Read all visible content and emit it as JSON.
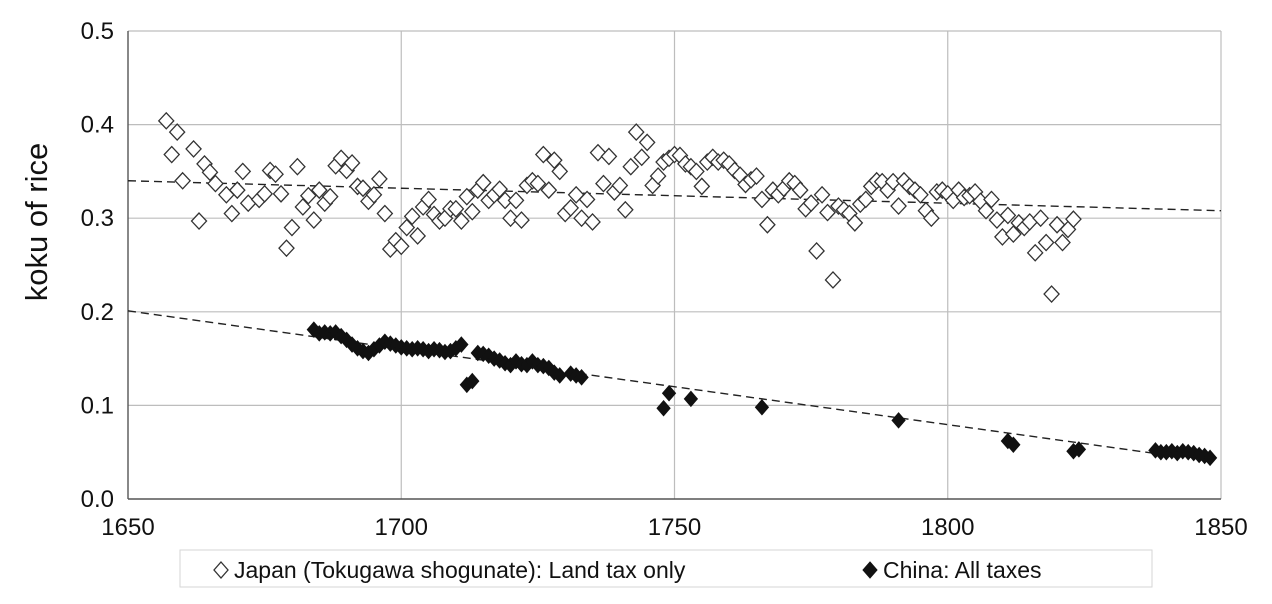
{
  "chart_data": {
    "type": "scatter",
    "title": "",
    "xlabel": "",
    "ylabel": "koku of rice",
    "xlim": [
      1650,
      1850
    ],
    "ylim": [
      0,
      0.5
    ],
    "x_ticks": [
      "1650",
      "1700",
      "1750",
      "1800",
      "1850"
    ],
    "y_ticks": [
      "0.0",
      "0.1",
      "0.2",
      "0.3",
      "0.4",
      "0.5"
    ],
    "grid": true,
    "legend_position": "bottom",
    "series": [
      {
        "name": "Japan (Tokugawa shogunate): Land tax only",
        "marker": "open-diamond",
        "color": "#ffffff",
        "stroke": "#333333",
        "trend": {
          "x": [
            1650,
            1850
          ],
          "y": [
            0.34,
            0.308
          ]
        },
        "points": [
          [
            1657,
            0.404
          ],
          [
            1658,
            0.368
          ],
          [
            1659,
            0.392
          ],
          [
            1660,
            0.34
          ],
          [
            1662,
            0.374
          ],
          [
            1663,
            0.297
          ],
          [
            1664,
            0.358
          ],
          [
            1665,
            0.349
          ],
          [
            1666,
            0.337
          ],
          [
            1668,
            0.325
          ],
          [
            1669,
            0.305
          ],
          [
            1670,
            0.33
          ],
          [
            1671,
            0.35
          ],
          [
            1672,
            0.316
          ],
          [
            1674,
            0.32
          ],
          [
            1675,
            0.326
          ],
          [
            1676,
            0.351
          ],
          [
            1677,
            0.347
          ],
          [
            1678,
            0.326
          ],
          [
            1679,
            0.268
          ],
          [
            1680,
            0.29
          ],
          [
            1681,
            0.355
          ],
          [
            1682,
            0.312
          ],
          [
            1683,
            0.324
          ],
          [
            1684,
            0.298
          ],
          [
            1685,
            0.33
          ],
          [
            1686,
            0.316
          ],
          [
            1687,
            0.323
          ],
          [
            1688,
            0.356
          ],
          [
            1689,
            0.364
          ],
          [
            1690,
            0.351
          ],
          [
            1691,
            0.359
          ],
          [
            1692,
            0.334
          ],
          [
            1693,
            0.332
          ],
          [
            1694,
            0.318
          ],
          [
            1695,
            0.325
          ],
          [
            1696,
            0.342
          ],
          [
            1697,
            0.305
          ],
          [
            1698,
            0.267
          ],
          [
            1699,
            0.276
          ],
          [
            1700,
            0.27
          ],
          [
            1701,
            0.29
          ],
          [
            1702,
            0.302
          ],
          [
            1703,
            0.281
          ],
          [
            1704,
            0.312
          ],
          [
            1705,
            0.32
          ],
          [
            1706,
            0.304
          ],
          [
            1707,
            0.297
          ],
          [
            1708,
            0.3
          ],
          [
            1709,
            0.31
          ],
          [
            1710,
            0.31
          ],
          [
            1711,
            0.297
          ],
          [
            1712,
            0.323
          ],
          [
            1713,
            0.307
          ],
          [
            1714,
            0.33
          ],
          [
            1715,
            0.338
          ],
          [
            1716,
            0.319
          ],
          [
            1717,
            0.325
          ],
          [
            1718,
            0.331
          ],
          [
            1719,
            0.319
          ],
          [
            1720,
            0.3
          ],
          [
            1721,
            0.319
          ],
          [
            1722,
            0.298
          ],
          [
            1723,
            0.335
          ],
          [
            1724,
            0.34
          ],
          [
            1725,
            0.337
          ],
          [
            1726,
            0.368
          ],
          [
            1727,
            0.33
          ],
          [
            1728,
            0.362
          ],
          [
            1729,
            0.35
          ],
          [
            1730,
            0.305
          ],
          [
            1731,
            0.311
          ],
          [
            1732,
            0.325
          ],
          [
            1733,
            0.3
          ],
          [
            1734,
            0.32
          ],
          [
            1735,
            0.296
          ],
          [
            1736,
            0.37
          ],
          [
            1737,
            0.337
          ],
          [
            1738,
            0.366
          ],
          [
            1739,
            0.328
          ],
          [
            1740,
            0.335
          ],
          [
            1741,
            0.309
          ],
          [
            1742,
            0.355
          ],
          [
            1743,
            0.392
          ],
          [
            1744,
            0.365
          ],
          [
            1745,
            0.381
          ],
          [
            1746,
            0.335
          ],
          [
            1747,
            0.345
          ],
          [
            1748,
            0.36
          ],
          [
            1749,
            0.364
          ],
          [
            1750,
            0.368
          ],
          [
            1751,
            0.367
          ],
          [
            1752,
            0.358
          ],
          [
            1753,
            0.355
          ],
          [
            1754,
            0.35
          ],
          [
            1755,
            0.334
          ],
          [
            1756,
            0.36
          ],
          [
            1757,
            0.365
          ],
          [
            1758,
            0.36
          ],
          [
            1759,
            0.362
          ],
          [
            1760,
            0.358
          ],
          [
            1761,
            0.351
          ],
          [
            1762,
            0.346
          ],
          [
            1763,
            0.336
          ],
          [
            1764,
            0.341
          ],
          [
            1765,
            0.345
          ],
          [
            1766,
            0.32
          ],
          [
            1767,
            0.293
          ],
          [
            1768,
            0.33
          ],
          [
            1769,
            0.325
          ],
          [
            1770,
            0.332
          ],
          [
            1771,
            0.34
          ],
          [
            1772,
            0.337
          ],
          [
            1773,
            0.33
          ],
          [
            1774,
            0.31
          ],
          [
            1775,
            0.316
          ],
          [
            1776,
            0.265
          ],
          [
            1777,
            0.325
          ],
          [
            1778,
            0.306
          ],
          [
            1779,
            0.234
          ],
          [
            1780,
            0.313
          ],
          [
            1781,
            0.309
          ],
          [
            1782,
            0.305
          ],
          [
            1783,
            0.295
          ],
          [
            1784,
            0.315
          ],
          [
            1785,
            0.32
          ],
          [
            1786,
            0.334
          ],
          [
            1787,
            0.34
          ],
          [
            1788,
            0.339
          ],
          [
            1789,
            0.33
          ],
          [
            1790,
            0.339
          ],
          [
            1791,
            0.313
          ],
          [
            1792,
            0.34
          ],
          [
            1793,
            0.334
          ],
          [
            1794,
            0.33
          ],
          [
            1795,
            0.325
          ],
          [
            1796,
            0.308
          ],
          [
            1797,
            0.3
          ],
          [
            1798,
            0.328
          ],
          [
            1799,
            0.33
          ],
          [
            1800,
            0.326
          ],
          [
            1801,
            0.319
          ],
          [
            1802,
            0.33
          ],
          [
            1803,
            0.322
          ],
          [
            1804,
            0.324
          ],
          [
            1805,
            0.328
          ],
          [
            1806,
            0.318
          ],
          [
            1807,
            0.308
          ],
          [
            1808,
            0.32
          ],
          [
            1809,
            0.298
          ],
          [
            1810,
            0.28
          ],
          [
            1811,
            0.303
          ],
          [
            1812,
            0.283
          ],
          [
            1813,
            0.295
          ],
          [
            1814,
            0.29
          ],
          [
            1815,
            0.296
          ],
          [
            1816,
            0.263
          ],
          [
            1817,
            0.3
          ],
          [
            1818,
            0.274
          ],
          [
            1819,
            0.219
          ],
          [
            1820,
            0.293
          ],
          [
            1821,
            0.274
          ],
          [
            1822,
            0.288
          ],
          [
            1823,
            0.299
          ]
        ]
      },
      {
        "name": "China: All taxes",
        "marker": "filled-diamond",
        "color": "#111111",
        "stroke": "#111111",
        "trend": {
          "x": [
            1650,
            1840
          ],
          "y": [
            0.201,
            0.047
          ]
        },
        "points": [
          [
            1684,
            0.181
          ],
          [
            1685,
            0.177
          ],
          [
            1686,
            0.178
          ],
          [
            1687,
            0.177
          ],
          [
            1688,
            0.178
          ],
          [
            1689,
            0.174
          ],
          [
            1690,
            0.17
          ],
          [
            1691,
            0.165
          ],
          [
            1692,
            0.161
          ],
          [
            1693,
            0.158
          ],
          [
            1694,
            0.156
          ],
          [
            1695,
            0.16
          ],
          [
            1696,
            0.164
          ],
          [
            1697,
            0.168
          ],
          [
            1698,
            0.166
          ],
          [
            1699,
            0.164
          ],
          [
            1700,
            0.162
          ],
          [
            1701,
            0.161
          ],
          [
            1702,
            0.16
          ],
          [
            1703,
            0.161
          ],
          [
            1704,
            0.16
          ],
          [
            1705,
            0.158
          ],
          [
            1706,
            0.16
          ],
          [
            1707,
            0.159
          ],
          [
            1708,
            0.157
          ],
          [
            1709,
            0.158
          ],
          [
            1710,
            0.161
          ],
          [
            1711,
            0.165
          ],
          [
            1712,
            0.122
          ],
          [
            1713,
            0.126
          ],
          [
            1714,
            0.156
          ],
          [
            1715,
            0.155
          ],
          [
            1716,
            0.153
          ],
          [
            1717,
            0.15
          ],
          [
            1718,
            0.148
          ],
          [
            1719,
            0.145
          ],
          [
            1720,
            0.143
          ],
          [
            1721,
            0.147
          ],
          [
            1722,
            0.144
          ],
          [
            1723,
            0.143
          ],
          [
            1724,
            0.147
          ],
          [
            1725,
            0.143
          ],
          [
            1726,
            0.142
          ],
          [
            1727,
            0.14
          ],
          [
            1728,
            0.135
          ],
          [
            1729,
            0.132
          ],
          [
            1731,
            0.134
          ],
          [
            1732,
            0.132
          ],
          [
            1733,
            0.13
          ],
          [
            1748,
            0.097
          ],
          [
            1749,
            0.113
          ],
          [
            1753,
            0.107
          ],
          [
            1766,
            0.098
          ],
          [
            1791,
            0.084
          ],
          [
            1811,
            0.062
          ],
          [
            1812,
            0.058
          ],
          [
            1823,
            0.051
          ],
          [
            1824,
            0.053
          ],
          [
            1838,
            0.052
          ],
          [
            1839,
            0.05
          ],
          [
            1840,
            0.05
          ],
          [
            1841,
            0.051
          ],
          [
            1842,
            0.049
          ],
          [
            1843,
            0.051
          ],
          [
            1844,
            0.05
          ],
          [
            1845,
            0.049
          ],
          [
            1846,
            0.047
          ],
          [
            1847,
            0.046
          ],
          [
            1848,
            0.044
          ]
        ]
      }
    ]
  }
}
